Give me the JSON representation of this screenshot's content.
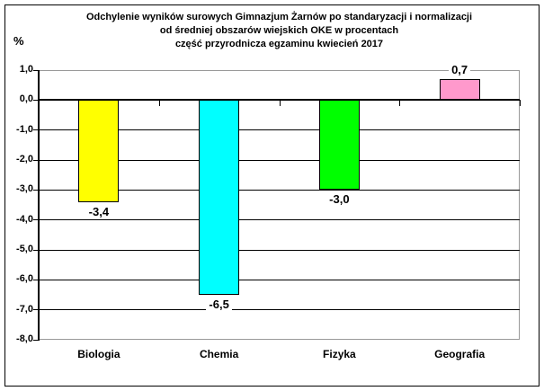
{
  "chart_data": {
    "type": "bar",
    "title_lines": [
      "Odchylenie wyników surowych Gimnazjum Żarnów po standaryzacji i normalizacji",
      "od średniej obszarów wiejskich OKE w procentach",
      "część przyrodnicza egzaminu kwiecień 2017"
    ],
    "y_axis_unit": "%",
    "categories": [
      "Biologia",
      "Chemia",
      "Fizyka",
      "Geografia"
    ],
    "values": [
      -3.4,
      -6.5,
      -3.0,
      0.7
    ],
    "data_labels": [
      "-3,4",
      "-6,5",
      "-3,0",
      "0,7"
    ],
    "bar_colors": [
      "#FFFF00",
      "#00FFFF",
      "#00FF00",
      "#FF99CC"
    ],
    "ylim": [
      -8.0,
      1.0
    ],
    "ytick_step": 1.0,
    "ytick_labels": [
      "1,0",
      "0,0",
      "-1,0",
      "-2,0",
      "-3,0",
      "-4,0",
      "-5,0",
      "-6,0",
      "-7,0",
      "-8,0"
    ],
    "grid": true,
    "legend": "none",
    "xlabel": "",
    "ylabel": "%",
    "styles": {
      "background": "#FFFFFF",
      "gridline_color": "#000000",
      "axis_color": "#000000",
      "plot_border_color": "#999999",
      "bar_border_color": "#000000",
      "text_color": "#000000"
    }
  }
}
